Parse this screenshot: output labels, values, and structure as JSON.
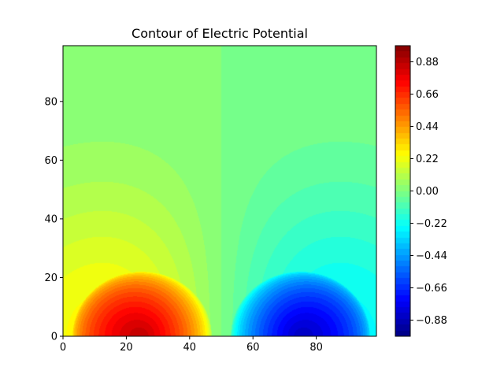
{
  "chart_data": {
    "type": "heatmap",
    "title": "Contour of Electric Potential",
    "xlabel": "",
    "ylabel": "",
    "xlim": [
      0,
      99
    ],
    "ylim": [
      0,
      99
    ],
    "x_ticks": [
      0,
      20,
      40,
      60,
      80
    ],
    "y_ticks": [
      0,
      20,
      40,
      60,
      80
    ],
    "colormap": "jet",
    "colorbar": {
      "vmin": -0.99,
      "vmax": 0.99,
      "ticks": [
        0.88,
        0.66,
        0.44,
        0.22,
        0.0,
        -0.22,
        -0.44,
        -0.66,
        -0.88
      ],
      "tick_labels": [
        "0.88",
        "0.66",
        "0.44",
        "0.22",
        "0.00",
        "−0.22",
        "−0.44",
        "−0.66",
        "−0.88"
      ]
    },
    "field": {
      "positive_peak": {
        "x": 25,
        "y": 0,
        "value": 0.99
      },
      "negative_peak": {
        "x": 75,
        "y": 0,
        "value": -0.99
      },
      "background_value": 0.0,
      "falloff_radius": 22
    }
  }
}
